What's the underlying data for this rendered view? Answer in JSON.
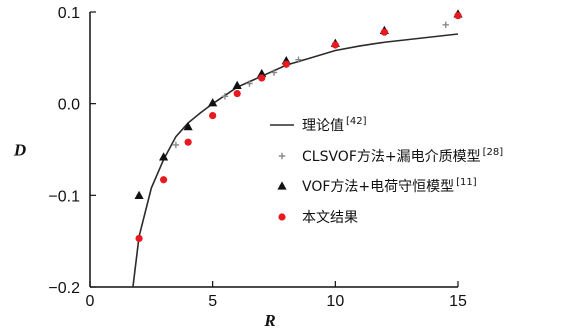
{
  "chart_data": {
    "type": "scatter",
    "title": "",
    "xlabel": "R",
    "ylabel": "D",
    "xlim": [
      0,
      15
    ],
    "ylim": [
      -0.2,
      0.1
    ],
    "x_ticks": [
      0,
      5,
      10,
      15
    ],
    "y_ticks": [
      -0.2,
      -0.1,
      0.0,
      0.1
    ],
    "x_tick_labels": [
      "0",
      "5",
      "10",
      "15"
    ],
    "y_tick_labels": [
      "−0.2",
      "−0.1",
      "0.0",
      "0.1"
    ],
    "grid": false,
    "legend_position": "right",
    "series": [
      {
        "name": "理论值",
        "ref": "[42]",
        "style": "line",
        "color": "#2b2b2b",
        "x": [
          1.75,
          2,
          2.5,
          3,
          3.5,
          4,
          4.5,
          5,
          6,
          7,
          8,
          9,
          10,
          11,
          12,
          13,
          14,
          15
        ],
        "y": [
          -0.2,
          -0.145,
          -0.092,
          -0.061,
          -0.036,
          -0.021,
          -0.01,
          0.0,
          0.018,
          0.03,
          0.042,
          0.05,
          0.058,
          0.063,
          0.067,
          0.07,
          0.073,
          0.076
        ]
      },
      {
        "name": "CLSVOF方法+漏电介质模型",
        "ref": "[28]",
        "style": "plus",
        "color": "#8a8a8a",
        "x": [
          3.5,
          5.5,
          6.5,
          7.5,
          8.5,
          14.5
        ],
        "y": [
          -0.045,
          0.008,
          0.022,
          0.034,
          0.048,
          0.086
        ]
      },
      {
        "name": "VOF方法+电荷守恒模型",
        "ref": "[11]",
        "style": "triangle",
        "color": "#111111",
        "x": [
          2,
          3,
          4,
          5,
          6,
          7,
          8,
          10,
          12,
          15
        ],
        "y": [
          -0.1,
          -0.058,
          -0.025,
          0.001,
          0.02,
          0.033,
          0.047,
          0.066,
          0.08,
          0.098
        ]
      },
      {
        "name": "本文结果",
        "ref": "",
        "style": "circle",
        "color": "#e8191f",
        "x": [
          2,
          3,
          4,
          5,
          6,
          7,
          8,
          10,
          12,
          15
        ],
        "y": [
          -0.147,
          -0.083,
          -0.042,
          -0.013,
          0.011,
          0.028,
          0.043,
          0.064,
          0.078,
          0.096
        ]
      }
    ]
  }
}
